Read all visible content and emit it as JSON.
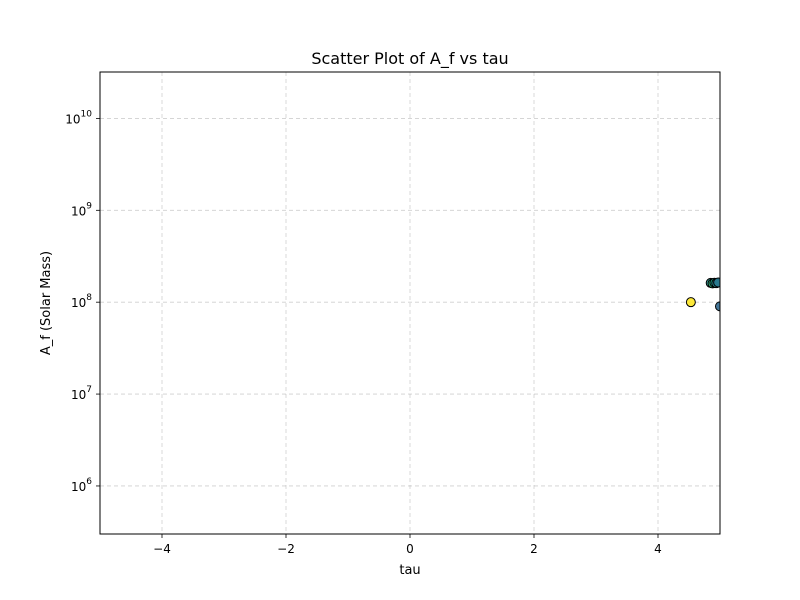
{
  "chart_data": {
    "type": "scatter",
    "title": "Scatter Plot of A_f vs tau",
    "xlabel": "tau",
    "ylabel": "A_f (Solar Mass)",
    "xlim": [
      -5,
      5
    ],
    "ylim": [
      300000,
      32000000000
    ],
    "yscale": "log",
    "grid": true,
    "x_ticks": [
      {
        "value": -4,
        "label": "−4"
      },
      {
        "value": -2,
        "label": "−2"
      },
      {
        "value": 0,
        "label": "0"
      },
      {
        "value": 2,
        "label": "2"
      },
      {
        "value": 4,
        "label": "4"
      }
    ],
    "y_ticks": [
      {
        "value": 1000000,
        "base": "10",
        "exp": "6"
      },
      {
        "value": 10000000,
        "base": "10",
        "exp": "7"
      },
      {
        "value": 100000000,
        "base": "10",
        "exp": "8"
      },
      {
        "value": 1000000000,
        "base": "10",
        "exp": "9"
      },
      {
        "value": 10000000000,
        "base": "10",
        "exp": "10"
      }
    ],
    "points": [
      {
        "x": 4.53,
        "y": 100000000,
        "color": "#fde725"
      },
      {
        "x": 4.85,
        "y": 162000000,
        "color": "#21918c"
      },
      {
        "x": 4.88,
        "y": 160000000,
        "color": "#35b779"
      },
      {
        "x": 4.91,
        "y": 163000000,
        "color": "#1f9e89"
      },
      {
        "x": 4.94,
        "y": 161000000,
        "color": "#26828e"
      },
      {
        "x": 4.97,
        "y": 164000000,
        "color": "#2a788e"
      },
      {
        "x": 5.0,
        "y": 90000000,
        "color": "#31688e"
      }
    ],
    "marker_edge_color": "#000000"
  }
}
